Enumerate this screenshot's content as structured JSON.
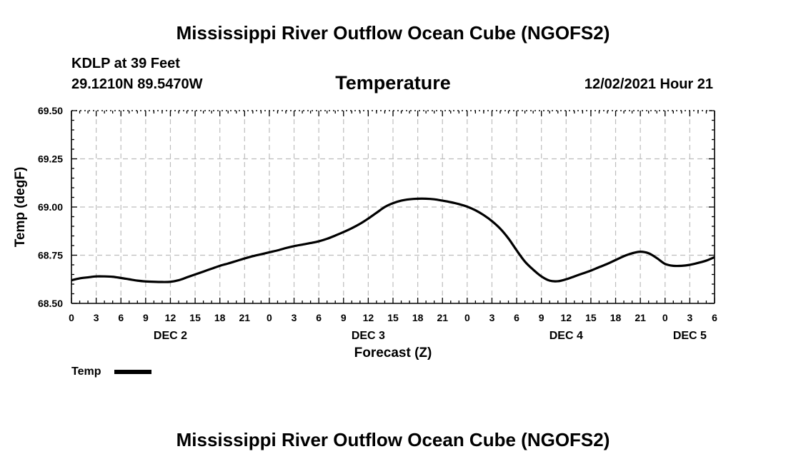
{
  "header": {
    "title": "Mississippi River Outflow Ocean Cube (NGOFS2)",
    "station": "KDLP at 39 Feet",
    "location": "29.1210N  89.5470W",
    "datetime": "12/02/2021 Hour 21"
  },
  "footer": {
    "title": "Mississippi River Outflow Ocean Cube (NGOFS2)"
  },
  "legend": {
    "label": "Temp"
  },
  "chart_data": {
    "type": "line",
    "title": "Temperature",
    "xlabel": "Forecast (Z)",
    "ylabel": "Temp (degF)",
    "xlim": [
      0,
      78
    ],
    "ylim": [
      68.5,
      69.5
    ],
    "y_ticks": [
      68.5,
      68.75,
      69.0,
      69.25,
      69.5
    ],
    "y_tick_labels": [
      "68.50",
      "68.75",
      "69.00",
      "69.25",
      "69.50"
    ],
    "x_tick_labels": [
      "0",
      "3",
      "6",
      "9",
      "12",
      "15",
      "18",
      "21",
      "0",
      "3",
      "6",
      "9",
      "12",
      "15",
      "18",
      "21",
      "0",
      "3",
      "6",
      "9",
      "12",
      "15",
      "18",
      "21",
      "0",
      "3",
      "6"
    ],
    "day_labels": [
      {
        "label": "DEC 2",
        "hour": 12
      },
      {
        "label": "DEC 3",
        "hour": 36
      },
      {
        "label": "DEC 4",
        "hour": 60
      },
      {
        "label": "DEC 5",
        "hour": 75
      }
    ],
    "grid": true,
    "legend_position": "bottom-left",
    "series": [
      {
        "name": "Temp",
        "color": "#000000",
        "x": [
          0,
          1,
          2,
          3,
          4,
          5,
          6,
          7,
          8,
          9,
          10,
          11,
          12,
          13,
          14,
          15,
          16,
          17,
          18,
          19,
          20,
          21,
          22,
          23,
          24,
          25,
          26,
          27,
          28,
          29,
          30,
          31,
          32,
          33,
          34,
          35,
          36,
          37,
          38,
          39,
          40,
          41,
          42,
          43,
          44,
          45,
          46,
          47,
          48,
          49,
          50,
          51,
          52,
          53,
          54,
          55,
          56,
          57,
          58,
          59,
          60,
          61,
          62,
          63,
          64,
          65,
          66,
          67,
          68,
          69,
          70,
          71,
          72,
          73,
          74,
          75,
          76,
          77,
          78
        ],
        "values": [
          68.62,
          68.63,
          68.635,
          68.64,
          68.64,
          68.638,
          68.632,
          68.625,
          68.618,
          68.614,
          68.612,
          68.611,
          68.612,
          68.62,
          68.635,
          68.65,
          68.665,
          68.68,
          68.695,
          68.707,
          68.72,
          68.733,
          68.745,
          68.755,
          68.765,
          68.775,
          68.787,
          68.797,
          68.805,
          68.813,
          68.822,
          68.835,
          68.852,
          68.87,
          68.89,
          68.913,
          68.94,
          68.97,
          69.0,
          69.02,
          69.033,
          69.04,
          69.043,
          69.043,
          69.04,
          69.033,
          69.025,
          69.015,
          69.002,
          68.983,
          68.958,
          68.927,
          68.888,
          68.837,
          68.775,
          68.717,
          68.675,
          68.64,
          68.618,
          68.615,
          68.625,
          68.64,
          68.655,
          68.67,
          68.688,
          68.705,
          68.725,
          68.745,
          68.76,
          68.768,
          68.76,
          68.735,
          68.705,
          68.695,
          68.695,
          68.7,
          68.71,
          68.722,
          68.74
        ]
      }
    ]
  }
}
